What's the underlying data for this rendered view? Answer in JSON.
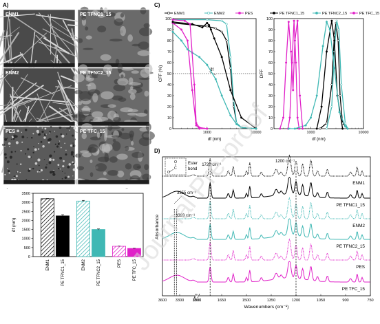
{
  "panel_labels": [
    "A)",
    "B)",
    "C)",
    "D)"
  ],
  "sem_panels": [
    {
      "label": "ENM1",
      "pattern": "fibrous"
    },
    {
      "label": "PE TFNC1_15",
      "pattern": "smooth"
    },
    {
      "label": "ENM2",
      "pattern": "fibrous"
    },
    {
      "label": "PE TFNC2_15",
      "pattern": "rough"
    },
    {
      "label": "PES",
      "pattern": "porous"
    },
    {
      "label": "PE TFC_15",
      "pattern": "nodular"
    }
  ],
  "watermark": "Journal Pre-proof",
  "colors": {
    "black": "#000000",
    "cyan": "#3fb8b4",
    "magenta": "#e020c8",
    "grey": "#9a9a9a"
  },
  "chart_data": [
    {
      "type": "bar",
      "panel": "B)",
      "ylabel": "d̄f (nm)",
      "ylim": [
        0,
        3500
      ],
      "yticks": [
        0,
        500,
        1000,
        1500,
        2000,
        2500,
        3000,
        3500
      ],
      "categories": [
        "ENM1",
        "PE TFNC1_15",
        "ENM2",
        "PE TFNC2_15",
        "PES",
        "PE TFC_15"
      ],
      "values": [
        3200,
        2250,
        3070,
        1500,
        570,
        450
      ],
      "errors": [
        15,
        70,
        40,
        30,
        10,
        10
      ],
      "fills": [
        "hatch-black",
        "black",
        "hatch-cyan",
        "cyan",
        "hatch-magenta",
        "magenta"
      ]
    },
    {
      "type": "line",
      "panel": "C)",
      "legend": [
        "ENM1",
        "ENM2",
        "PES",
        "PE TFNC1_15",
        "PE TFNC2_15",
        "PE TFC_15"
      ],
      "legend_position": "top",
      "subplots": [
        {
          "ylabel": "CFF (%)",
          "xlabel": "df (nm)",
          "xscale": "log",
          "xlim": [
            200,
            10000
          ],
          "ylim": [
            0,
            100
          ],
          "yticks": [
            0,
            10,
            20,
            30,
            40,
            50,
            60,
            70,
            80,
            90,
            100
          ],
          "xtick_labels": [
            "1000",
            "10000"
          ],
          "reference_line": 50,
          "annotation": "d̄f",
          "series": [
            {
              "name": "ENM1",
              "x": [
                200,
                1000,
                1500,
                2000,
                2500,
                3000,
                3500,
                4000,
                5000,
                10000
              ],
              "y": [
                96,
                93,
                91,
                88,
                80,
                55,
                20,
                5,
                1,
                0
              ]
            },
            {
              "name": "ENM2",
              "x": [
                200,
                1000,
                2000,
                2500,
                3000,
                3500,
                4000,
                5000,
                10000
              ],
              "y": [
                99,
                99,
                98,
                95,
                65,
                25,
                5,
                1,
                0
              ]
            },
            {
              "name": "PES",
              "x": [
                200,
                300,
                400,
                500,
                600,
                700,
                1000
              ],
              "y": [
                96,
                90,
                80,
                35,
                3,
                0,
                0
              ]
            },
            {
              "name": "PE TFNC1_15",
              "x": [
                200,
                500,
                800,
                1000,
                1100,
                1200,
                1400,
                2000,
                3000,
                5000,
                10000
              ],
              "y": [
                97,
                95,
                92,
                96,
                94,
                90,
                82,
                65,
                35,
                10,
                0
              ]
            },
            {
              "name": "PE TFNC2_15",
              "x": [
                200,
                300,
                400,
                500,
                700,
                1000,
                1500,
                2000,
                3000,
                4000,
                5000,
                10000
              ],
              "y": [
                88,
                80,
                72,
                69,
                65,
                58,
                45,
                30,
                12,
                4,
                1,
                0
              ]
            },
            {
              "name": "PE TFC_15",
              "x": [
                200,
                350,
                450,
                550,
                600,
                700,
                1000
              ],
              "y": [
                99,
                98,
                95,
                40,
                5,
                1,
                0
              ]
            }
          ]
        },
        {
          "ylabel": "DFF",
          "xlabel": "df (nm)",
          "xscale": "log",
          "xlim": [
            200,
            10000
          ],
          "ylim": [
            0,
            100
          ],
          "yticks": [
            0,
            10,
            20,
            30,
            40,
            50,
            60,
            70,
            80,
            90,
            100
          ],
          "xtick_labels": [
            "1000",
            "10000"
          ],
          "series": [
            {
              "name": "ENM1",
              "x": [
                1500,
                2000,
                2500,
                2800,
                3000,
                3300,
                3600,
                4000,
                5000
              ],
              "y": [
                0,
                5,
                40,
                85,
                96,
                80,
                30,
                5,
                0
              ]
            },
            {
              "name": "ENM2",
              "x": [
                2000,
                2500,
                2800,
                3100,
                3400,
                3800,
                4500,
                5000
              ],
              "y": [
                0,
                20,
                70,
                98,
                90,
                40,
                5,
                0
              ]
            },
            {
              "name": "PES",
              "x": [
                370,
                400,
                440,
                480,
                520,
                560,
                600
              ],
              "y": [
                0,
                10,
                60,
                98,
                60,
                10,
                0
              ]
            },
            {
              "name": "PE TFNC1_15",
              "x": [
                1300,
                1600,
                2000,
                2500,
                2800,
                3200,
                4000
              ],
              "y": [
                0,
                20,
                70,
                98,
                80,
                30,
                0
              ]
            },
            {
              "name": "PE TFNC2_15",
              "x": [
                380,
                500,
                800,
                1000,
                1300,
                1700,
                2000,
                2300,
                2800,
                3500,
                4500,
                5000
              ],
              "y": [
                0,
                0,
                3,
                10,
                30,
                75,
                97,
                90,
                55,
                15,
                2,
                0
              ]
            },
            {
              "name": "PE TFC_15",
              "x": [
                260,
                300,
                340,
                380,
                420,
                460,
                500,
                560,
                620,
                700
              ],
              "y": [
                0,
                10,
                60,
                97,
                70,
                35,
                80,
                98,
                30,
                0
              ]
            }
          ]
        }
      ]
    },
    {
      "type": "line",
      "panel": "D)",
      "ylabel": "Absorbance",
      "xlabel": "Wavenumbers (cm⁻¹)",
      "xtick_labels": [
        "3600",
        "3300",
        "3000",
        "1800",
        "1650",
        "1500",
        "1350",
        "1200",
        "1050",
        "900",
        "750"
      ],
      "axis_break": "3000 // 1800",
      "annotations": [
        "1720 cm⁻¹",
        "1200 cm⁻¹",
        "3355 cm⁻¹",
        "3393 cm⁻¹"
      ],
      "inset_text": [
        "O",
        "C",
        "O",
        "Ester",
        "bond"
      ],
      "series": [
        {
          "name": "ENM1",
          "style": "dotted",
          "color": "#000000"
        },
        {
          "name": "PE TFNC1_15",
          "style": "solid",
          "color": "#000000"
        },
        {
          "name": "ENM2",
          "style": "dotted",
          "color": "#3fb8b4"
        },
        {
          "name": "PE TFNC2_15",
          "style": "solid",
          "color": "#3fb8b4"
        },
        {
          "name": "PES",
          "style": "dotted",
          "color": "#e020c8"
        },
        {
          "name": "PE TFC_15",
          "style": "solid",
          "color": "#e020c8"
        }
      ]
    }
  ]
}
